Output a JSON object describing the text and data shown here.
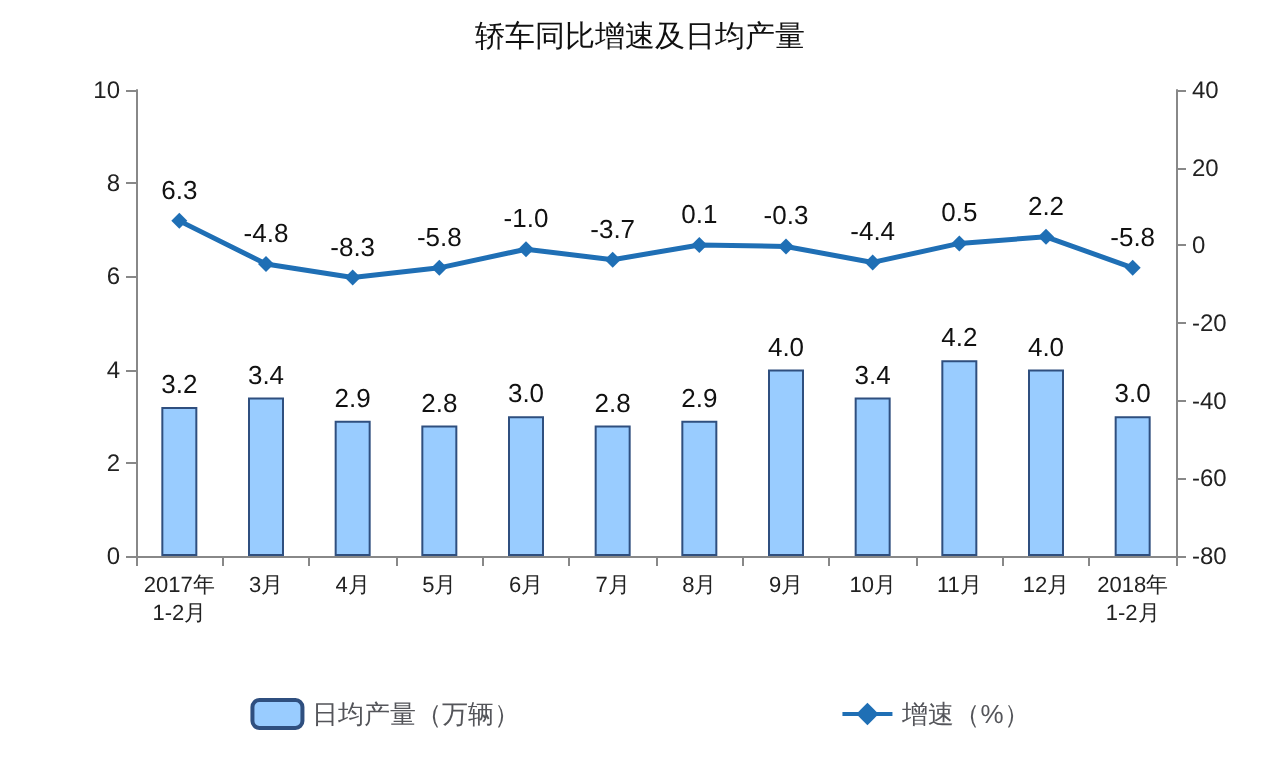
{
  "chart_data": {
    "type": "bar",
    "title": "轿车同比增速及日均产量",
    "categories": [
      "2017年\n1-2月",
      "3月",
      "4月",
      "5月",
      "6月",
      "7月",
      "8月",
      "9月",
      "10月",
      "11月",
      "12月",
      "2018年\n1-2月"
    ],
    "series": [
      {
        "name": "日均产量（万辆）",
        "color": "#99ccff",
        "values": [
          3.2,
          3.4,
          2.9,
          2.8,
          3.0,
          2.8,
          2.9,
          4.0,
          3.4,
          4.2,
          4.0,
          3.0
        ],
        "value_labels": [
          "3.2",
          "3.4",
          "2.9",
          "2.8",
          "3.0",
          "2.8",
          "2.9",
          "4.0",
          "3.4",
          "4.2",
          "4.0",
          "3.0"
        ]
      },
      {
        "name": "增速（%）",
        "type": "line",
        "axis": "y2",
        "color": "#1f6fb5",
        "marker": "diamond",
        "values": [
          6.3,
          -4.8,
          -8.3,
          -5.8,
          -1.0,
          -3.7,
          0.1,
          -0.3,
          -4.4,
          0.5,
          2.2,
          -5.8
        ],
        "value_labels": [
          "6.3",
          "-4.8",
          "-8.3",
          "-5.8",
          "-1.0",
          "-3.7",
          "0.1",
          "-0.3",
          "-4.4",
          "0.5",
          "2.2",
          "-5.8"
        ]
      }
    ],
    "ylim": [
      0,
      10
    ],
    "yticks": [
      0,
      2,
      4,
      6,
      8,
      10
    ],
    "y2lim": [
      -80,
      40
    ],
    "y2ticks": [
      -80,
      -60,
      -40,
      -20,
      0,
      20,
      40
    ],
    "grid": false,
    "legend": "bottom"
  }
}
